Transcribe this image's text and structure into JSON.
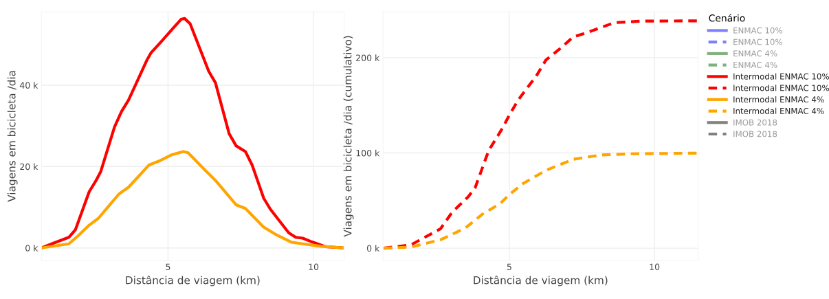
{
  "chart_data": [
    {
      "type": "line",
      "xlabel": "Distância de viagem (km)",
      "ylabel": "Viagens em bicicleta /dia",
      "xlim": [
        0.65,
        11.05
      ],
      "ylim": [
        -3000,
        58000
      ],
      "xticks": [
        5,
        10
      ],
      "yticks": [
        {
          "value": 0,
          "label": "0 k"
        },
        {
          "value": 20000,
          "label": "20 k"
        },
        {
          "value": 40000,
          "label": "40 k"
        }
      ],
      "grid": true,
      "legend": "right",
      "legend_title": "Cenário",
      "line_style": "solid",
      "series": [
        {
          "name": "ENMAC 10%",
          "color": "#8080ff"
        },
        {
          "name": "ENMAC 4%",
          "color": "#80b080"
        },
        {
          "name": "Intermodal ENMAC 10%",
          "color": "#ff0000",
          "x": [
            0.65,
            1.11,
            1.59,
            1.82,
            2.29,
            2.53,
            2.69,
            3.16,
            3.4,
            3.64,
            4.27,
            4.42,
            4.74,
            5.21,
            5.45,
            5.57,
            5.76,
            6.4,
            6.63,
            7.1,
            7.34,
            7.66,
            7.89,
            8.29,
            8.52,
            9.15,
            9.39,
            9.63,
            9.94,
            10.42,
            11.05
          ],
          "values": [
            0,
            1300,
            2600,
            4500,
            13800,
            16600,
            18800,
            29700,
            33500,
            36300,
            46100,
            48000,
            50500,
            54300,
            56200,
            56400,
            55100,
            43400,
            40600,
            28100,
            25100,
            23700,
            20400,
            12200,
            9500,
            3700,
            2600,
            2400,
            1500,
            300,
            0
          ]
        },
        {
          "name": "Intermodal ENMAC 4%",
          "color": "#ffa500",
          "x": [
            0.65,
            1.59,
            1.9,
            2.29,
            2.61,
            3.0,
            3.32,
            3.64,
            4.35,
            4.74,
            5.13,
            5.53,
            5.69,
            6.32,
            6.63,
            7.34,
            7.66,
            8.29,
            8.68,
            9.24,
            9.63,
            10.26,
            11.05
          ],
          "values": [
            0,
            1000,
            2900,
            5600,
            7300,
            10600,
            13300,
            14900,
            20400,
            21500,
            22900,
            23700,
            23400,
            18800,
            16600,
            10600,
            9700,
            5100,
            3400,
            1400,
            1000,
            400,
            0
          ]
        },
        {
          "name": "IMOB 2018",
          "color": "#808080"
        }
      ]
    },
    {
      "type": "line",
      "xlabel": "Distância de viagem (km)",
      "ylabel": "Viagens em bicicleta /dia (cumulativo)",
      "xlim": [
        0.65,
        11.5
      ],
      "ylim": [
        -12500,
        248000
      ],
      "xticks": [
        5,
        10
      ],
      "yticks": [
        {
          "value": 0,
          "label": "0 k"
        },
        {
          "value": 100000,
          "label": "100 k"
        },
        {
          "value": 200000,
          "label": "200 k"
        }
      ],
      "grid": true,
      "legend": "right",
      "line_style": "dashed",
      "series": [
        {
          "name": "ENMAC 10%",
          "color": "#8080ff"
        },
        {
          "name": "ENMAC 4%",
          "color": "#80b080"
        },
        {
          "name": "Intermodal ENMAC 10%",
          "color": "#ff0000",
          "x": [
            0.67,
            1.61,
            2.63,
            3.03,
            3.58,
            3.82,
            4.29,
            4.76,
            5.0,
            5.31,
            5.94,
            6.26,
            6.73,
            7.2,
            7.68,
            8.62,
            9.57,
            11.5
          ],
          "values": [
            0,
            3500,
            20400,
            37700,
            53900,
            63200,
            102500,
            125700,
            139600,
            155800,
            181300,
            197500,
            209000,
            221800,
            226400,
            236800,
            238400,
            238700
          ]
        },
        {
          "name": "Intermodal ENMAC 4%",
          "color": "#ffa500",
          "x": [
            0.67,
            1.61,
            2.63,
            3.5,
            4.06,
            4.69,
            5.0,
            5.47,
            6.26,
            7.2,
            8.15,
            9.17,
            11.5
          ],
          "values": [
            0,
            1200,
            8800,
            21500,
            35400,
            47000,
            56200,
            67800,
            81700,
            93300,
            97900,
            99100,
            99800
          ]
        },
        {
          "name": "IMOB 2018",
          "color": "#808080"
        }
      ]
    }
  ]
}
